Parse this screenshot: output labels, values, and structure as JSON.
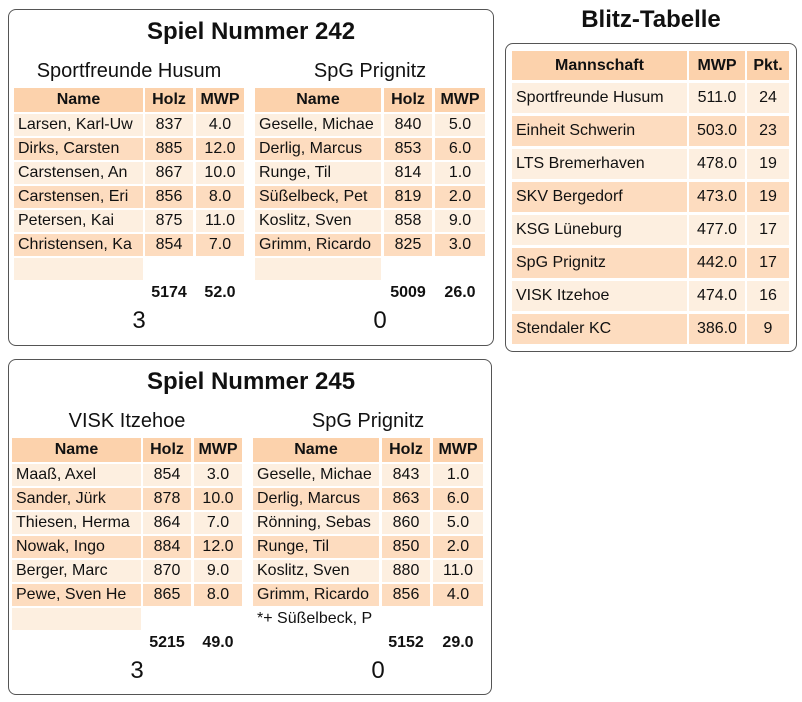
{
  "games": [
    {
      "title": "Spiel Nummer 242",
      "teams": [
        {
          "name": "Sportfreunde Husum",
          "header": [
            "Name",
            "Holz",
            "MWP"
          ],
          "players": [
            [
              "Larsen, Karl-Uw",
              "837",
              "4.0"
            ],
            [
              "Dirks, Carsten",
              "885",
              "12.0"
            ],
            [
              "Carstensen, An",
              "867",
              "10.0"
            ],
            [
              "Carstensen, Eri",
              "856",
              "8.0"
            ],
            [
              "Petersen, Kai",
              "875",
              "11.0"
            ],
            [
              "Christensen, Ka",
              "854",
              "7.0"
            ]
          ],
          "total_holz": "5174",
          "total_mwp": "52.0",
          "score": "3"
        },
        {
          "name": "SpG Prignitz",
          "header": [
            "Name",
            "Holz",
            "MWP"
          ],
          "players": [
            [
              "Geselle, Michae",
              "840",
              "5.0"
            ],
            [
              "Derlig, Marcus",
              "853",
              "6.0"
            ],
            [
              "Runge, Til",
              "814",
              "1.0"
            ],
            [
              "Süßelbeck, Pet",
              "819",
              "2.0"
            ],
            [
              "Koslitz, Sven",
              "858",
              "9.0"
            ],
            [
              "Grimm, Ricardo",
              "825",
              "3.0"
            ]
          ],
          "total_holz": "5009",
          "total_mwp": "26.0",
          "score": "0"
        }
      ]
    },
    {
      "title": "Spiel Nummer 245",
      "teams": [
        {
          "name": "VISK Itzehoe",
          "header": [
            "Name",
            "Holz",
            "MWP"
          ],
          "players": [
            [
              "Maaß, Axel",
              "854",
              "3.0"
            ],
            [
              "Sander, Jürk",
              "878",
              "10.0"
            ],
            [
              "Thiesen, Herma",
              "864",
              "7.0"
            ],
            [
              "Nowak, Ingo",
              "884",
              "12.0"
            ],
            [
              "Berger, Marc",
              "870",
              "9.0"
            ],
            [
              "Pewe, Sven He",
              "865",
              "8.0"
            ]
          ],
          "total_holz": "5215",
          "total_mwp": "49.0",
          "score": "3"
        },
        {
          "name": "SpG Prignitz",
          "header": [
            "Name",
            "Holz",
            "MWP"
          ],
          "players": [
            [
              "Geselle, Michae",
              "843",
              "1.0"
            ],
            [
              "Derlig, Marcus",
              "863",
              "6.0"
            ],
            [
              "Rönning, Sebas",
              "860",
              "5.0"
            ],
            [
              "Runge, Til",
              "850",
              "2.0"
            ],
            [
              "Koslitz, Sven",
              "880",
              "11.0"
            ],
            [
              "Grimm, Ricardo",
              "856",
              "4.0"
            ]
          ],
          "note": "*+ Süßelbeck, P",
          "total_holz": "5152",
          "total_mwp": "29.0",
          "score": "0"
        }
      ]
    }
  ],
  "standings": {
    "title": "Blitz-Tabelle",
    "header": [
      "Mannschaft",
      "MWP",
      "Pkt."
    ],
    "rows": [
      [
        "Sportfreunde Husum",
        "511.0",
        "24"
      ],
      [
        "Einheit Schwerin",
        "503.0",
        "23"
      ],
      [
        "LTS Bremerhaven",
        "478.0",
        "19"
      ],
      [
        "SKV Bergedorf",
        "473.0",
        "19"
      ],
      [
        "KSG Lüneburg",
        "477.0",
        "17"
      ],
      [
        "SpG Prignitz",
        "442.0",
        "17"
      ],
      [
        "VISK Itzehoe",
        "474.0",
        "16"
      ],
      [
        "Stendaler KC",
        "386.0",
        "9"
      ]
    ]
  }
}
